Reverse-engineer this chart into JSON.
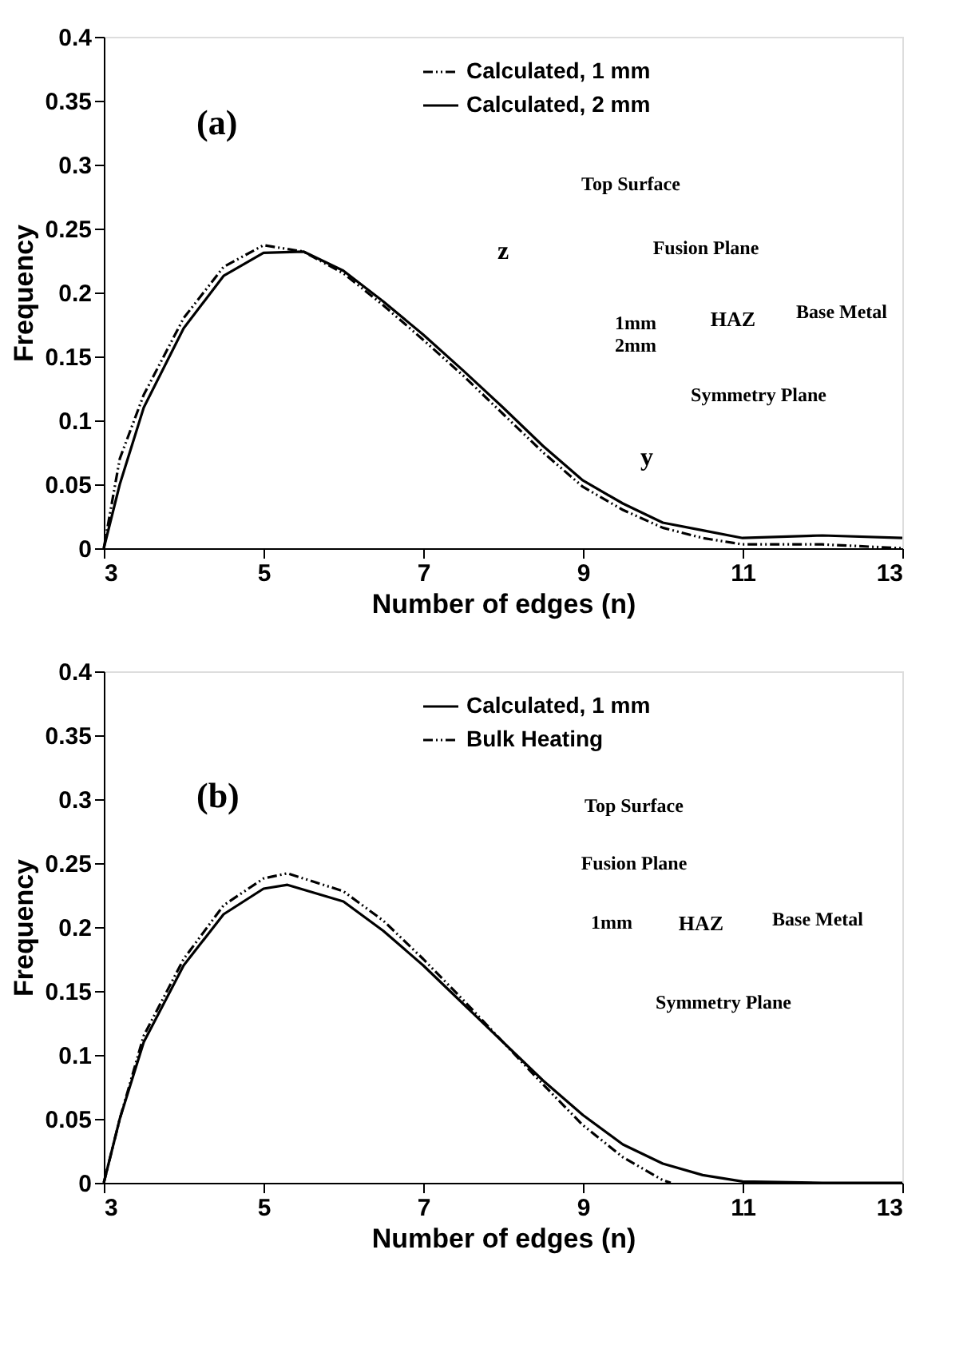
{
  "chart_data": [
    {
      "type": "line",
      "xlabel": "Number of edges (n)",
      "ylabel": "Frequency",
      "xlim": [
        3,
        13
      ],
      "xticks": [
        3,
        5,
        7,
        9,
        11,
        13
      ],
      "ylim": [
        0,
        0.4
      ],
      "yticks": [
        0,
        0.05,
        0.1,
        0.15,
        0.2,
        0.25,
        0.3,
        0.35,
        0.4
      ],
      "legend": "top",
      "grid": false,
      "annotations": [
        "(a)",
        "Top Surface",
        "Fusion Plane",
        "z",
        "1mm",
        "2mm",
        "HAZ",
        "Base Metal",
        "Symmetry Plane",
        "y"
      ],
      "series": [
        {
          "name": "Calculated, 1 mm",
          "color": "#000000",
          "line_style": "dashed",
          "x": [
            3,
            3.2,
            3.5,
            4,
            4.5,
            5,
            5.5,
            6,
            6.5,
            7,
            7.5,
            8,
            8.5,
            9,
            9.5,
            10,
            10.5,
            11,
            12,
            13
          ],
          "values": [
            0.0,
            0.07,
            0.12,
            0.18,
            0.22,
            0.237,
            0.232,
            0.215,
            0.19,
            0.163,
            0.135,
            0.105,
            0.075,
            0.048,
            0.03,
            0.016,
            0.008,
            0.003,
            0.003,
            0.0
          ]
        },
        {
          "name": "Calculated, 2 mm",
          "color": "#000000",
          "line_style": "solid",
          "x": [
            3,
            3.2,
            3.5,
            4,
            4.5,
            5,
            5.5,
            6,
            6.5,
            7,
            7.5,
            8,
            8.5,
            9,
            9.5,
            10,
            10.5,
            11,
            12,
            13
          ],
          "values": [
            0.0,
            0.05,
            0.11,
            0.172,
            0.213,
            0.231,
            0.232,
            0.217,
            0.193,
            0.167,
            0.139,
            0.11,
            0.08,
            0.053,
            0.035,
            0.02,
            0.014,
            0.008,
            0.01,
            0.008
          ]
        }
      ]
    },
    {
      "type": "line",
      "xlabel": "Number of edges (n)",
      "ylabel": "Frequency",
      "xlim": [
        3,
        13
      ],
      "xticks": [
        3,
        5,
        7,
        9,
        11,
        13
      ],
      "ylim": [
        0,
        0.4
      ],
      "yticks": [
        0,
        0.05,
        0.1,
        0.15,
        0.2,
        0.25,
        0.3,
        0.35,
        0.4
      ],
      "legend": "top",
      "grid": false,
      "annotations": [
        "(b)",
        "Top Surface",
        "Fusion Plane",
        "1mm",
        "HAZ",
        "Base Metal",
        "Symmetry Plane"
      ],
      "series": [
        {
          "name": "Calculated, 1 mm",
          "color": "#000000",
          "line_style": "solid",
          "x": [
            3,
            3.2,
            3.5,
            4,
            4.5,
            5,
            5.3,
            6,
            6.5,
            7,
            7.5,
            8,
            8.5,
            9,
            9.5,
            10,
            10.5,
            11,
            12,
            13
          ],
          "values": [
            0.0,
            0.05,
            0.11,
            0.17,
            0.21,
            0.23,
            0.233,
            0.22,
            0.197,
            0.17,
            0.14,
            0.11,
            0.08,
            0.053,
            0.03,
            0.015,
            0.006,
            0.001,
            0.0,
            0.0
          ]
        },
        {
          "name": "Bulk Heating",
          "color": "#000000",
          "line_style": "dashed",
          "x": [
            3,
            3.2,
            3.5,
            4,
            4.5,
            5,
            5.3,
            6,
            6.5,
            7,
            7.5,
            8,
            8.5,
            9,
            9.5,
            10,
            10.1
          ],
          "values": [
            0.0,
            0.05,
            0.115,
            0.175,
            0.217,
            0.238,
            0.242,
            0.228,
            0.205,
            0.175,
            0.143,
            0.11,
            0.077,
            0.045,
            0.02,
            0.002,
            0.0
          ]
        }
      ]
    }
  ]
}
